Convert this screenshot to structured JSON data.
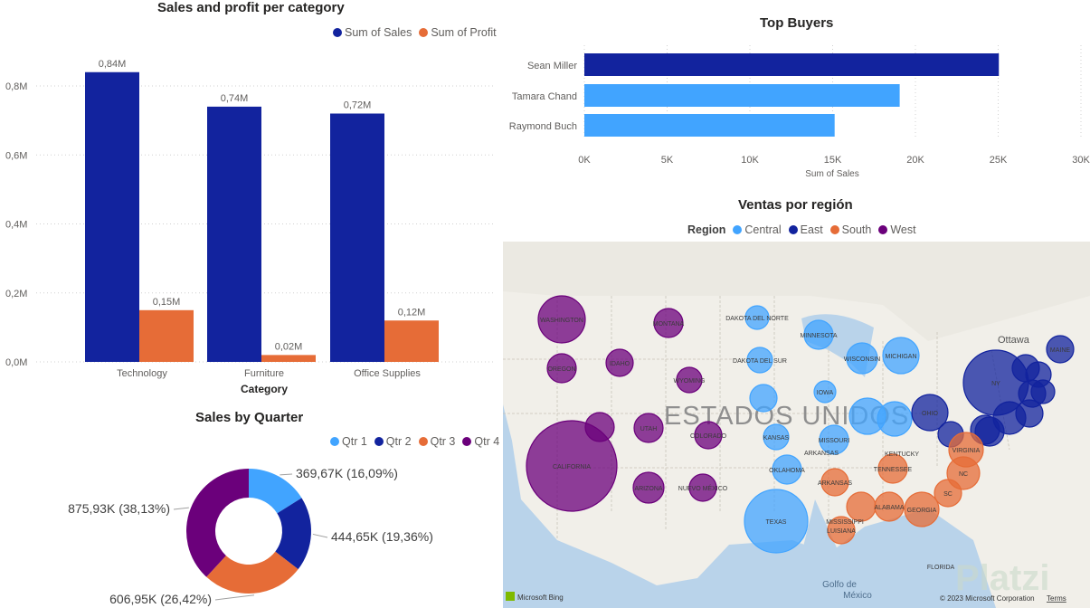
{
  "colors": {
    "sales": "#12239e",
    "profit": "#e66c37",
    "central": "#41a4ff",
    "east": "#12239e",
    "south": "#e66c37",
    "west": "#6b007b",
    "topbar_dark": "#12239e",
    "topbar_light": "#41a4ff"
  },
  "category_chart": {
    "title": "Sales and profit per category",
    "legend": [
      "Sum of Sales",
      "Sum of Profit"
    ],
    "xlabel": "Category",
    "ytick_labels": [
      "0,0M",
      "0,2M",
      "0,4M",
      "0,6M",
      "0,8M"
    ]
  },
  "top_buyers": {
    "title": "Top Buyers",
    "xlabel": "Sum of Sales",
    "xtick_labels": [
      "0K",
      "5K",
      "10K",
      "15K",
      "20K",
      "25K",
      "30K"
    ]
  },
  "quarter_chart": {
    "title": "Sales by Quarter",
    "legend": [
      "Qtr 1",
      "Qtr 2",
      "Qtr 3",
      "Qtr 4"
    ],
    "slice_labels": [
      "369,67K (16,09%)",
      "444,65K (19,36%)",
      "606,95K (26,42%)",
      "875,93K (38,13%)"
    ]
  },
  "region_map": {
    "title": "Ventas por región",
    "legend_label": "Region",
    "legend": [
      "Central",
      "East",
      "South",
      "West"
    ],
    "country_label": "ESTADOS UNIDOS",
    "map_labels": {
      "washington": "WASHINGTON",
      "oregon": "OREGON",
      "california": "CALIFORNIA",
      "idaho": "IDAHO",
      "montana": "MONTANA",
      "wyoming": "WYOMING",
      "utah": "UTAH",
      "colorado": "COLORADO",
      "arizona": "ARIZONA",
      "nuevo_mexico": "NUEVO MÉXICO",
      "dakota_norte": "DAKOTA DEL NORTE",
      "dakota_sur": "DAKOTA DEL SUR",
      "kansas": "KANSAS",
      "oklahoma": "OKLAHOMA",
      "texas": "TEXAS",
      "minnesota": "MINNESOTA",
      "iowa": "IOWA",
      "missouri": "MISSOURI",
      "arkansas": "ARKANSAS",
      "wisconsin": "WISCONSIN",
      "michigan": "MICHIGAN",
      "ohio": "OHIO",
      "kentucky": "KENTUCKY",
      "tennessee": "TENNESSEE",
      "mississippi": "MISSISSIPPI",
      "alabama": "ALABAMA",
      "georgia": "GEORGIA",
      "luisiana": "LUISIANA",
      "florida": "FLORIDA",
      "virginia": "VIRGINIA",
      "nc": "NC",
      "sc": "SC",
      "ny": "NY",
      "maine": "MAINE",
      "ottawa": "Ottawa",
      "golfo": "Golfo de México"
    },
    "attribution": "Microsoft Bing",
    "copyright": "© 2023 Microsoft Corporation",
    "terms": "Terms",
    "watermark": "Platzi"
  },
  "chart_data": [
    {
      "type": "bar",
      "title": "Sales and profit per category",
      "categories": [
        "Technology",
        "Furniture",
        "Office Supplies"
      ],
      "series": [
        {
          "name": "Sum of Sales",
          "values": [
            0.84,
            0.74,
            0.72
          ],
          "labels": [
            "0,84M",
            "0,74M",
            "0,72M"
          ]
        },
        {
          "name": "Sum of Profit",
          "values": [
            0.15,
            0.02,
            0.12
          ],
          "labels": [
            "0,15M",
            "0,02M",
            "0,12M"
          ]
        }
      ],
      "xlabel": "Category",
      "ylabel": "",
      "ylim": [
        0,
        0.8
      ],
      "yticks": [
        0,
        0.2,
        0.4,
        0.6,
        0.8
      ]
    },
    {
      "type": "bar",
      "orientation": "horizontal",
      "title": "Top Buyers",
      "categories": [
        "Sean Miller",
        "Tamara Chand",
        "Raymond Buch"
      ],
      "values": [
        25040,
        19050,
        15120
      ],
      "xlabel": "Sum of Sales",
      "xlim": [
        0,
        30000
      ],
      "xticks": [
        0,
        5000,
        10000,
        15000,
        20000,
        25000,
        30000
      ]
    },
    {
      "type": "pie",
      "variant": "donut",
      "title": "Sales by Quarter",
      "categories": [
        "Qtr 1",
        "Qtr 2",
        "Qtr 3",
        "Qtr 4"
      ],
      "values": [
        369.67,
        444.65,
        606.95,
        875.93
      ],
      "percent": [
        16.09,
        19.36,
        26.42,
        38.13
      ]
    },
    {
      "type": "scatter",
      "variant": "bubble-map",
      "title": "Ventas por región",
      "legend": [
        "Central",
        "East",
        "South",
        "West"
      ]
    }
  ]
}
